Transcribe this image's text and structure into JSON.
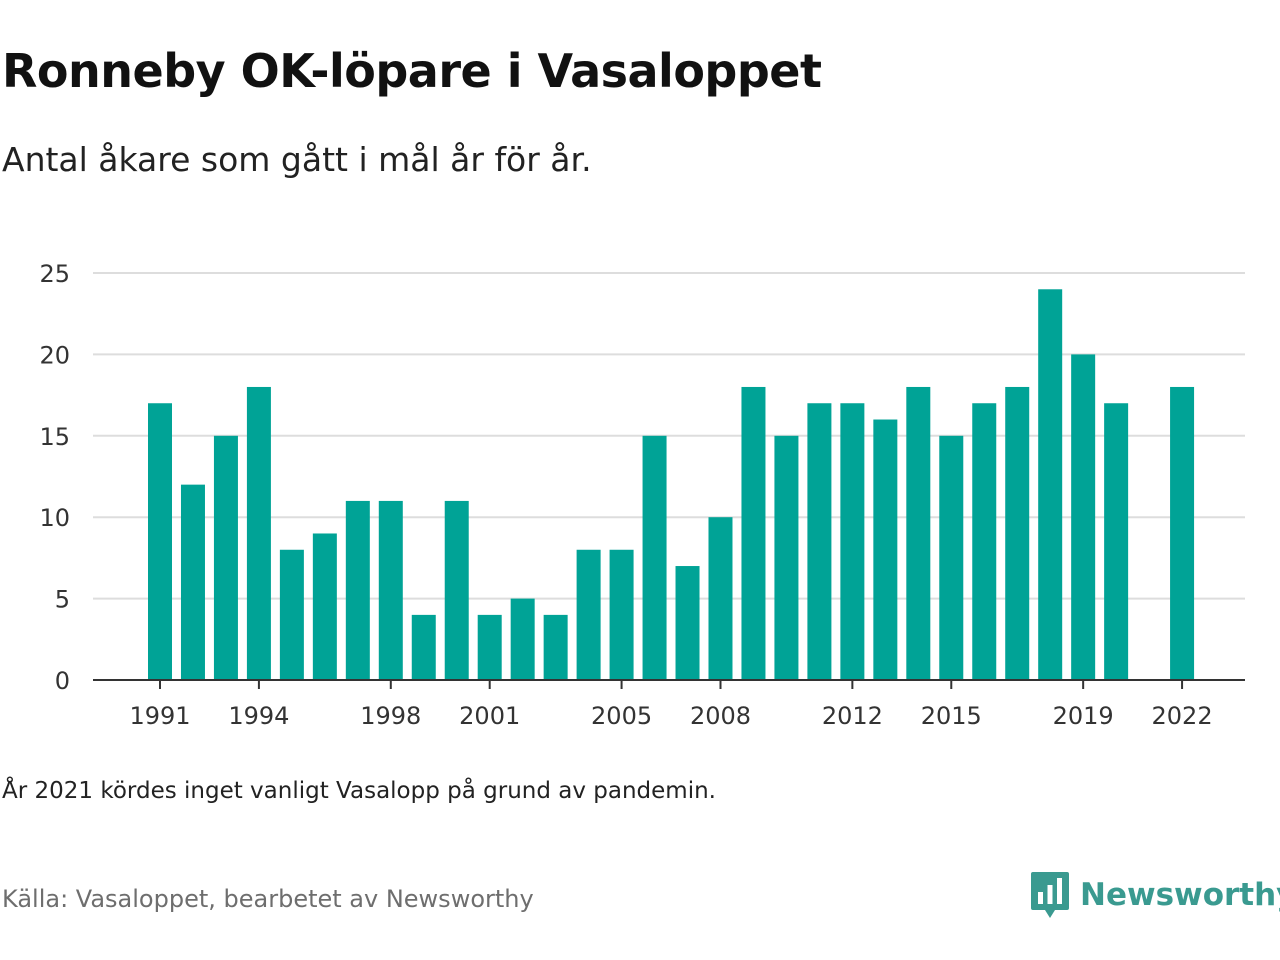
{
  "header": {
    "title": "Ronneby OK-löpare i Vasaloppet",
    "subtitle": "Antal åkare som gått i mål år för år."
  },
  "footer": {
    "note": "År 2021 kördes inget vanligt Vasalopp på grund av pandemin.",
    "source": "Källa: Vasaloppet, bearbetet av Newsworthy",
    "logo_text": "Newsworthy",
    "logo_icon": "newsworthy-logo-icon"
  },
  "colors": {
    "bar": "#00a396",
    "grid": "#dddddd",
    "axis": "#333333",
    "logo": "#3a9a90"
  },
  "chart_data": {
    "type": "bar",
    "x": [
      1991,
      1992,
      1993,
      1994,
      1995,
      1996,
      1997,
      1998,
      1999,
      2000,
      2001,
      2002,
      2003,
      2004,
      2005,
      2006,
      2007,
      2008,
      2009,
      2010,
      2011,
      2012,
      2013,
      2014,
      2015,
      2016,
      2017,
      2018,
      2019,
      2020,
      2021,
      2022
    ],
    "values": [
      17,
      12,
      15,
      18,
      8,
      9,
      11,
      11,
      4,
      11,
      4,
      5,
      4,
      8,
      8,
      15,
      7,
      10,
      18,
      15,
      17,
      17,
      16,
      18,
      15,
      17,
      18,
      24,
      20,
      17,
      null,
      18
    ],
    "x_ticks": [
      1991,
      1994,
      1998,
      2001,
      2005,
      2008,
      2012,
      2015,
      2019,
      2022
    ],
    "y_ticks": [
      0,
      5,
      10,
      15,
      20,
      25
    ],
    "ylim": [
      0,
      25
    ],
    "grid": true,
    "xlabel": "",
    "ylabel": ""
  }
}
